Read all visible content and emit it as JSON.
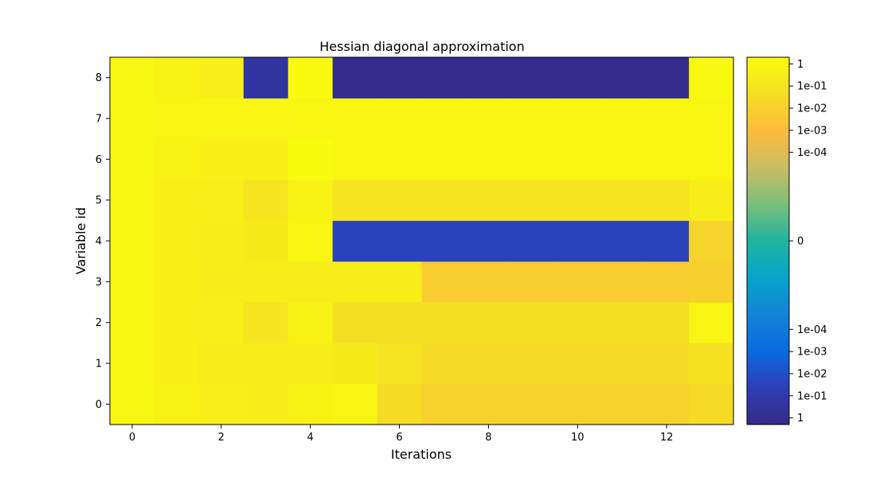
{
  "chart_data": {
    "type": "heatmap",
    "title": "Hessian diagonal approximation",
    "xlabel": "Iterations",
    "ylabel": "Variable id",
    "x": [
      0,
      1,
      2,
      3,
      4,
      5,
      6,
      7,
      8,
      9,
      10,
      11,
      12,
      13
    ],
    "y": [
      0,
      1,
      2,
      3,
      4,
      5,
      6,
      7,
      8
    ],
    "xticks": [
      "0",
      "2",
      "4",
      "6",
      "8",
      "10",
      "12"
    ],
    "yticks": [
      "0",
      "1",
      "2",
      "3",
      "4",
      "5",
      "6",
      "7",
      "8"
    ],
    "xlim": [
      -0.5,
      13.5
    ],
    "ylim": [
      -0.5,
      8.5
    ],
    "colorbar": {
      "scale": "symlog",
      "ticks": [
        "1",
        "1e-01",
        "1e-02",
        "1e-03",
        "1e-04",
        "0",
        "1e-04",
        "1e-03",
        "1e-02",
        "1e-01",
        "1"
      ],
      "tick_values": [
        1,
        0.1,
        0.01,
        0.001,
        0.0001,
        0,
        -0.0001,
        -0.001,
        -0.01,
        -0.1,
        -1
      ],
      "range": [
        -2,
        2
      ]
    },
    "values": [
      [
        1.2,
        0.6,
        0.4,
        0.3,
        0.7,
        0.9,
        0.04,
        0.012,
        0.012,
        0.012,
        0.012,
        0.012,
        0.012,
        0.03
      ],
      [
        1.2,
        0.5,
        0.25,
        0.25,
        0.3,
        0.2,
        0.08,
        0.03,
        0.03,
        0.03,
        0.03,
        0.03,
        0.03,
        0.06
      ],
      [
        1.2,
        0.5,
        0.4,
        0.1,
        0.7,
        0.05,
        0.05,
        0.05,
        0.05,
        0.05,
        0.05,
        0.05,
        0.05,
        0.8
      ],
      [
        1.2,
        0.5,
        0.3,
        0.3,
        0.3,
        0.3,
        0.3,
        0.007,
        0.007,
        0.007,
        0.007,
        0.007,
        0.007,
        0.01
      ],
      [
        1.2,
        0.5,
        0.35,
        0.2,
        1.1,
        -0.03,
        -0.03,
        -0.03,
        -0.03,
        -0.03,
        -0.03,
        -0.03,
        -0.03,
        0.015
      ],
      [
        1.2,
        0.5,
        0.4,
        0.1,
        0.6,
        0.1,
        0.1,
        0.1,
        0.1,
        0.1,
        0.1,
        0.1,
        0.1,
        0.3
      ],
      [
        1.2,
        0.6,
        0.5,
        0.5,
        2.0,
        1.1,
        1.1,
        1.1,
        1.1,
        1.1,
        1.1,
        1.1,
        1.1,
        1.1
      ],
      [
        1.2,
        0.8,
        0.8,
        0.8,
        1.1,
        1.1,
        1.1,
        1.1,
        1.1,
        1.1,
        1.1,
        1.1,
        1.1,
        1.1
      ],
      [
        1.2,
        0.6,
        0.4,
        -0.25,
        1.8,
        -1.2,
        -1.2,
        -1.2,
        -1.2,
        -1.2,
        -1.2,
        -1.2,
        -1.2,
        1.4
      ]
    ]
  }
}
